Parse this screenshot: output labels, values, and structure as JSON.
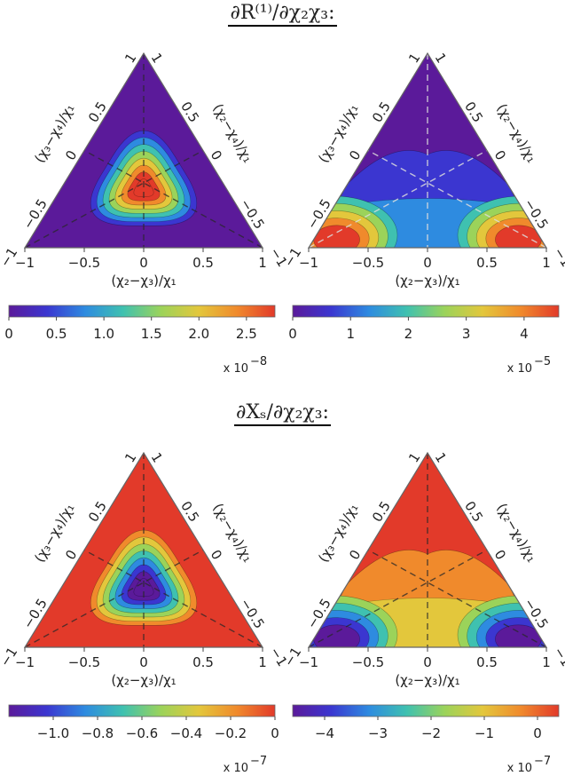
{
  "titles": {
    "top": "∂R⁽¹⁾/∂χ₂χ₃:",
    "bottom": "∂Xₛ/∂χ₂χ₃:"
  },
  "colors": {
    "palette": [
      "#5b1a9a",
      "#3b36d0",
      "#2e8be0",
      "#3fc1b0",
      "#9bd35a",
      "#e3c73c",
      "#f08a2c",
      "#e23a2a"
    ]
  },
  "chart_data": [
    {
      "type": "ternary-contour",
      "position": "top-left",
      "xlabel": "(χ₂−χ₃)/χ₁",
      "left_axis_label": "(χ₃−χ₄)/χ₁",
      "right_axis_label": "(χ₂−χ₄)/χ₁",
      "bottom_ticks": [
        "−1",
        "−0.5",
        "0",
        "0.5",
        "1"
      ],
      "left_ticks": [
        "−1",
        "−0.5",
        "0",
        "0.5",
        "1"
      ],
      "right_ticks": [
        "−1",
        "−0.5",
        "0",
        "0.5",
        "1"
      ],
      "shape": "center-peak",
      "colorbar": {
        "ticks": [
          "0",
          "0.5",
          "1.0",
          "1.5",
          "2.0",
          "2.5"
        ],
        "tick_values": [
          0,
          0.5,
          1.0,
          1.5,
          2.0,
          2.5
        ],
        "range": [
          0,
          2.8
        ],
        "exponent": "x 10",
        "exponent_power": "−8"
      }
    },
    {
      "type": "ternary-contour",
      "position": "top-right",
      "xlabel": "(χ₂−χ₃)/χ₁",
      "left_axis_label": "(χ₃−χ₄)/χ₁",
      "right_axis_label": "(χ₂−χ₄)/χ₁",
      "bottom_ticks": [
        "−1",
        "−0.5",
        "0",
        "0.5",
        "1"
      ],
      "left_ticks": [
        "−1",
        "−0.5",
        "0",
        "0.5",
        "1"
      ],
      "right_ticks": [
        "−1",
        "−0.5",
        "0",
        "0.5",
        "1"
      ],
      "shape": "corner-peaks",
      "colorbar": {
        "ticks": [
          "0",
          "1",
          "2",
          "3",
          "4"
        ],
        "tick_values": [
          0,
          1,
          2,
          3,
          4
        ],
        "range": [
          0,
          4.6
        ],
        "exponent": "x 10",
        "exponent_power": "−5"
      }
    },
    {
      "type": "ternary-contour",
      "position": "bottom-left",
      "xlabel": "(χ₂−χ₃)/χ₁",
      "left_axis_label": "(χ₃−χ₄)/χ₁",
      "right_axis_label": "(χ₂−χ₄)/χ₁",
      "bottom_ticks": [
        "−1",
        "−0.5",
        "0",
        "0.5",
        "1"
      ],
      "left_ticks": [
        "−1",
        "−0.5",
        "0",
        "0.5",
        "1"
      ],
      "right_ticks": [
        "−1",
        "−0.5",
        "0",
        "0.5",
        "1"
      ],
      "shape": "center-trough",
      "colorbar": {
        "ticks": [
          "−1.0",
          "−0.8",
          "−0.6",
          "−0.4",
          "−0.2",
          "0"
        ],
        "tick_values": [
          -1.0,
          -0.8,
          -0.6,
          -0.4,
          -0.2,
          0
        ],
        "range": [
          -1.2,
          0
        ],
        "exponent": "x 10",
        "exponent_power": "−7"
      }
    },
    {
      "type": "ternary-contour",
      "position": "bottom-right",
      "xlabel": "(χ₂−χ₃)/χ₁",
      "left_axis_label": "(χ₃−χ₄)/χ₁",
      "right_axis_label": "(χ₂−χ₄)/χ₁",
      "bottom_ticks": [
        "−1",
        "−0.5",
        "0",
        "0.5",
        "1"
      ],
      "left_ticks": [
        "−1",
        "−0.5",
        "0",
        "0.5",
        "1"
      ],
      "right_ticks": [
        "−1",
        "−0.5",
        "0",
        "0.5",
        "1"
      ],
      "shape": "corner-troughs",
      "colorbar": {
        "ticks": [
          "−4",
          "−3",
          "−2",
          "−1",
          "0"
        ],
        "tick_values": [
          -4,
          -3,
          -2,
          -1,
          0
        ],
        "range": [
          -4.6,
          0.4
        ],
        "exponent": "x 10",
        "exponent_power": "−7"
      }
    }
  ]
}
